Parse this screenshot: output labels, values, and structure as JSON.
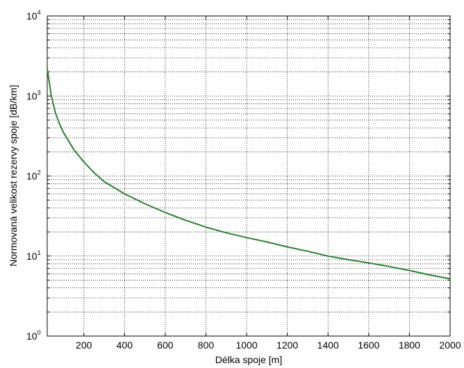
{
  "chart_data": {
    "type": "line",
    "title": "",
    "xlabel": "Délka spoje [m]",
    "ylabel": "Normovaná velikost rezervy spoje [dB/km]",
    "xlim": [
      20,
      2000
    ],
    "ylim": [
      1,
      10000
    ],
    "y_scale": "log",
    "grid": true,
    "x_ticks": [
      200,
      400,
      600,
      800,
      1000,
      1200,
      1400,
      1600,
      1800,
      2000
    ],
    "x_tick_labels": [
      "200",
      "400",
      "600",
      "800",
      "1000",
      "1200",
      "1400",
      "1600",
      "1800",
      "2000"
    ],
    "y_ticks": [
      1,
      10,
      100,
      1000,
      10000
    ],
    "y_tick_base": "10",
    "y_tick_exponents": [
      "0",
      "1",
      "2",
      "3",
      "4"
    ],
    "series": [
      {
        "color": "#2e7d32",
        "x": [
          20,
          40,
          60,
          80,
          100,
          150,
          200,
          250,
          300,
          400,
          500,
          600,
          700,
          800,
          900,
          1000,
          1100,
          1200,
          1300,
          1400,
          1500,
          1600,
          1700,
          1800,
          1900,
          2000
        ],
        "y": [
          2200,
          1000,
          620,
          450,
          350,
          215,
          150,
          110,
          85,
          60,
          45,
          35,
          28,
          23,
          19.5,
          17,
          15,
          13,
          11.5,
          10,
          9,
          8.2,
          7.4,
          6.6,
          5.8,
          5.2
        ]
      }
    ]
  }
}
